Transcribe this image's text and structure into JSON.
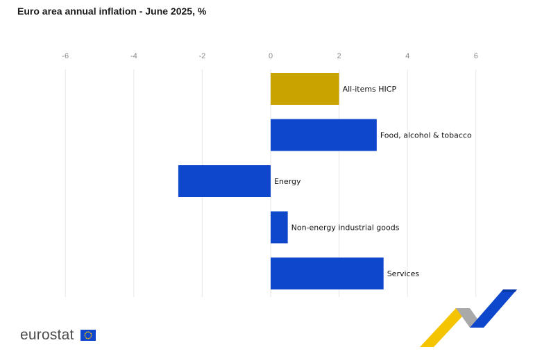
{
  "title": "Euro area annual inflation - June 2025, %",
  "brand": {
    "wordmark": "eurostat",
    "flag_icon": "eu-flag-icon",
    "ribbon_icon": "eurostat-ribbon-icon"
  },
  "colors": {
    "highlight": "#c9a400",
    "series": "#0e47cb",
    "grid": "#e6e6e6",
    "ribbon_yellow": "#f5c400",
    "ribbon_blue": "#0e47cb",
    "ribbon_grey": "#9a9a9a"
  },
  "chart_data": {
    "type": "bar",
    "orientation": "horizontal",
    "xlim": [
      -6,
      6
    ],
    "ticks": [
      -6,
      -4,
      -2,
      0,
      2,
      4,
      6
    ],
    "grid": true,
    "categories": [
      "All-items HICP",
      "Food, alcohol & tobacco",
      "Energy",
      "Non-energy industrial goods",
      "Services"
    ],
    "values": [
      2.0,
      3.1,
      -2.7,
      0.5,
      3.3
    ],
    "highlight_category": "All-items HICP"
  }
}
